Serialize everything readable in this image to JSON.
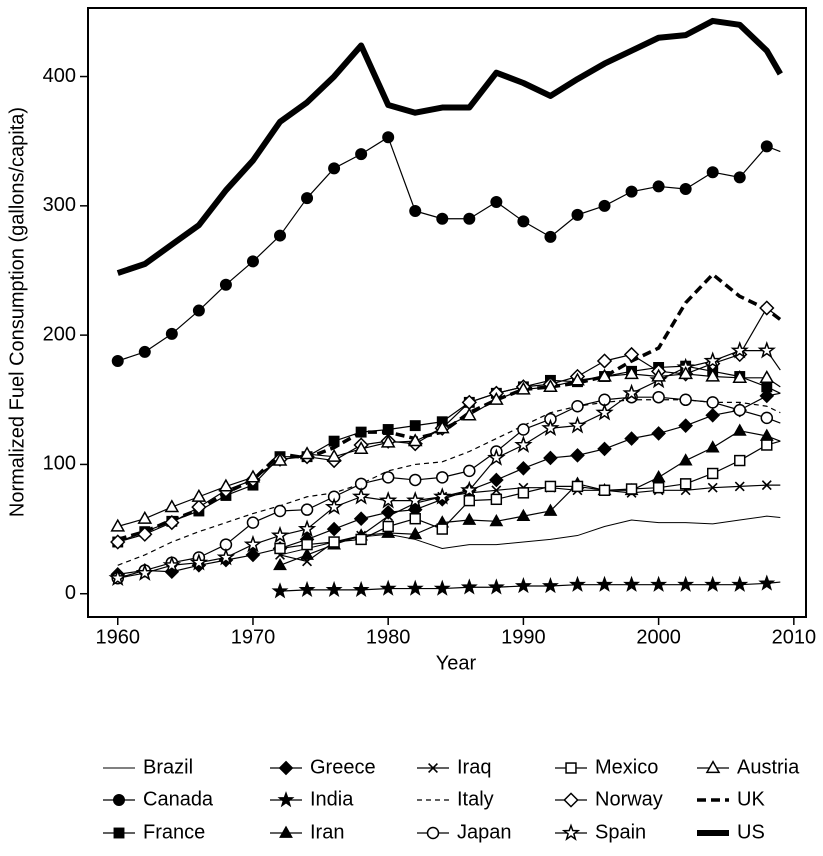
{
  "chart_data": {
    "type": "line",
    "xlabel": "Year",
    "ylabel": "Normalized Fuel Consumption (gallons/capita)",
    "x": [
      1960,
      1962,
      1964,
      1966,
      1968,
      1970,
      1972,
      1974,
      1976,
      1978,
      1980,
      1982,
      1984,
      1986,
      1988,
      1990,
      1992,
      1994,
      1996,
      1998,
      2000,
      2002,
      2004,
      2006,
      2008,
      2009
    ],
    "xlim": [
      1957.8,
      2010.9
    ],
    "xticks": [
      1960,
      1970,
      1980,
      1990,
      2000,
      2010
    ],
    "ylim": [
      -18,
      453
    ],
    "yticks": [
      0,
      100,
      200,
      300,
      400
    ],
    "series": [
      {
        "name": "Brazil",
        "color": "#000000",
        "line_width": 1,
        "dash": "solid",
        "marker": "none",
        "values": [
          null,
          null,
          null,
          null,
          null,
          null,
          30,
          35,
          40,
          44,
          46,
          42,
          35,
          38,
          38,
          40,
          42,
          45,
          52,
          57,
          55,
          55,
          54,
          57,
          60,
          59
        ]
      },
      {
        "name": "Canada",
        "color": "#000000",
        "line_width": 1.2,
        "dash": "solid",
        "marker": "circle-filled",
        "values": [
          180,
          187,
          201,
          219,
          239,
          257,
          277,
          306,
          329,
          340,
          353,
          296,
          290,
          290,
          303,
          288,
          276,
          293,
          300,
          311,
          315,
          313,
          326,
          322,
          346,
          342
        ]
      },
      {
        "name": "France",
        "color": "#000000",
        "line_width": 1.2,
        "dash": "solid",
        "marker": "square-filled",
        "values": [
          40,
          48,
          56,
          64,
          76,
          84,
          106,
          106,
          118,
          125,
          127,
          130,
          133,
          148,
          155,
          160,
          165,
          164,
          168,
          172,
          175,
          176,
          172,
          168,
          160,
          155
        ]
      },
      {
        "name": "Greece",
        "color": "#000000",
        "line_width": 1.2,
        "dash": "solid",
        "marker": "diamond-filled",
        "values": [
          15,
          18,
          17,
          22,
          26,
          30,
          35,
          42,
          50,
          58,
          63,
          65,
          73,
          80,
          88,
          97,
          105,
          107,
          112,
          120,
          124,
          130,
          138,
          142,
          153,
          155
        ]
      },
      {
        "name": "India",
        "color": "#000000",
        "line_width": 1.2,
        "dash": "solid",
        "marker": "star-filled",
        "values": [
          null,
          null,
          null,
          null,
          null,
          null,
          2,
          3,
          3,
          3,
          4,
          4,
          4,
          5,
          5,
          6,
          6,
          7,
          7,
          7,
          7,
          7,
          7,
          7,
          8,
          9
        ]
      },
      {
        "name": "Iran",
        "color": "#000000",
        "line_width": 1.2,
        "dash": "solid",
        "marker": "triangle-filled",
        "values": [
          null,
          null,
          null,
          null,
          null,
          null,
          22,
          30,
          38,
          45,
          47,
          46,
          55,
          57,
          56,
          60,
          64,
          85,
          80,
          80,
          90,
          103,
          113,
          126,
          122,
          118
        ]
      },
      {
        "name": "Iraq",
        "color": "#000000",
        "line_width": 1.2,
        "dash": "solid",
        "marker": "x",
        "values": [
          null,
          null,
          null,
          null,
          null,
          null,
          30,
          25,
          40,
          45,
          60,
          70,
          75,
          78,
          80,
          82,
          82,
          80,
          80,
          78,
          80,
          80,
          82,
          83,
          84,
          84
        ]
      },
      {
        "name": "Italy",
        "color": "#000000",
        "line_width": 1.2,
        "dash": "dashed",
        "marker": "none",
        "values": [
          22,
          30,
          40,
          48,
          55,
          62,
          68,
          75,
          78,
          85,
          95,
          100,
          102,
          110,
          120,
          130,
          140,
          145,
          148,
          150,
          150,
          150,
          148,
          148,
          145,
          140
        ]
      },
      {
        "name": "Japan",
        "color": "#000000",
        "line_width": 1.2,
        "dash": "solid",
        "marker": "circle-open",
        "values": [
          12,
          18,
          24,
          28,
          38,
          55,
          64,
          65,
          75,
          85,
          90,
          88,
          90,
          95,
          110,
          127,
          135,
          145,
          150,
          152,
          152,
          150,
          148,
          142,
          136,
          132
        ]
      },
      {
        "name": "Mexico",
        "color": "#000000",
        "line_width": 1.2,
        "dash": "solid",
        "marker": "square-open",
        "values": [
          null,
          null,
          null,
          null,
          null,
          null,
          35,
          38,
          40,
          42,
          52,
          58,
          50,
          72,
          73,
          78,
          83,
          83,
          80,
          81,
          82,
          85,
          93,
          103,
          115,
          118
        ]
      },
      {
        "name": "Norway",
        "color": "#000000",
        "line_width": 1.2,
        "dash": "solid",
        "marker": "diamond-open",
        "values": [
          40,
          46,
          55,
          67,
          80,
          88,
          104,
          106,
          103,
          115,
          118,
          116,
          128,
          148,
          155,
          160,
          162,
          168,
          180,
          185,
          172,
          170,
          178,
          185,
          221,
          213
        ]
      },
      {
        "name": "Spain",
        "color": "#000000",
        "line_width": 1.2,
        "dash": "solid",
        "marker": "star-open",
        "values": [
          12,
          16,
          22,
          24,
          28,
          38,
          45,
          50,
          67,
          75,
          72,
          72,
          75,
          80,
          105,
          115,
          128,
          130,
          140,
          155,
          165,
          175,
          180,
          188,
          188,
          173
        ]
      },
      {
        "name": "Austria",
        "color": "#000000",
        "line_width": 1.2,
        "dash": "solid",
        "marker": "triangle-open",
        "values": [
          52,
          58,
          67,
          75,
          83,
          90,
          103,
          108,
          106,
          112,
          117,
          118,
          128,
          138,
          150,
          158,
          160,
          165,
          168,
          170,
          168,
          170,
          168,
          167,
          167,
          160
        ]
      },
      {
        "name": "UK",
        "color": "#000000",
        "line_width": 3.5,
        "dash": "dashed",
        "marker": "none",
        "values": [
          42,
          48,
          57,
          65,
          78,
          88,
          108,
          105,
          113,
          125,
          125,
          120,
          125,
          140,
          150,
          158,
          160,
          163,
          168,
          180,
          190,
          225,
          247,
          230,
          220,
          212
        ]
      },
      {
        "name": "US",
        "color": "#000000",
        "line_width": 6,
        "dash": "solid",
        "marker": "none",
        "values": [
          248,
          255,
          270,
          285,
          312,
          335,
          365,
          380,
          400,
          424,
          378,
          372,
          376,
          376,
          403,
          395,
          385,
          398,
          410,
          420,
          430,
          432,
          443,
          440,
          420,
          402
        ]
      }
    ]
  }
}
